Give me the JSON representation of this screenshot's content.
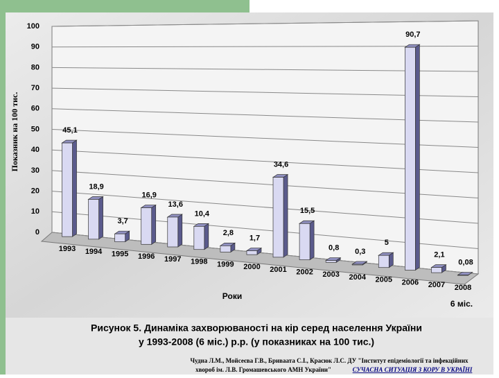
{
  "chart_data": {
    "type": "bar",
    "title": "Рисунок 5. Динаміка захворюваності на кір серед населення України",
    "subtitle": "у 1993-2008 (6 міс.) р.р. (у показниках на 100 тис.)",
    "y_label": "Показник на 100 тис.",
    "x_label": "Роки",
    "x_note": "6 міс.",
    "categories": [
      "1993",
      "1994",
      "1995",
      "1996",
      "1997",
      "1998",
      "1999",
      "2000",
      "2001",
      "2002",
      "2003",
      "2004",
      "2005",
      "2006",
      "2007",
      "2008"
    ],
    "values": [
      45.1,
      18.9,
      3.7,
      16.9,
      13.6,
      10.4,
      2.8,
      1.7,
      34.6,
      15.5,
      0.8,
      0.3,
      5,
      90.7,
      2.1,
      0.08
    ],
    "value_labels": [
      "45,1",
      "18,9",
      "3,7",
      "16,9",
      "13,6",
      "10,4",
      "2,8",
      "1,7",
      "34,6",
      "15,5",
      "0,8",
      "0,3",
      "5",
      "90,7",
      "2,1",
      "0,08"
    ],
    "color": "#d9d9f2",
    "ylim": [
      0,
      100
    ],
    "yticks": [
      0,
      10,
      20,
      30,
      40,
      50,
      60,
      70,
      80,
      90,
      100
    ],
    "grid": true
  },
  "source": {
    "line1": "Чудна Л.М., Мойсеєва Г.В., Бриваата С.І., Красюк Л.С. ДУ \"Інститут епідеміології та інфекційних",
    "line2": "хвороб ім. Л.В. Громашевського АМН України\"",
    "link": "СУЧАСНА СИТУАЦІЯ З КОРУ В УКРАЇНІ"
  }
}
